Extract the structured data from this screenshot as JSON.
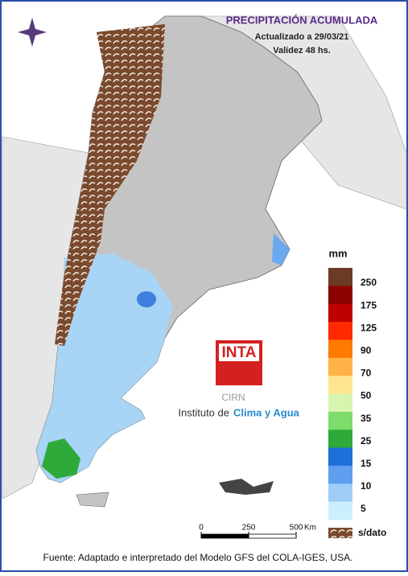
{
  "header": {
    "title": "PRECIPITACIÓN ACUMULADA",
    "updated": "Actualizado a 29/03/21",
    "validity": "Validez 48 hs."
  },
  "legend": {
    "unit": "mm",
    "colors": [
      "#6b3b26",
      "#8b0000",
      "#c00000",
      "#ff2a00",
      "#ff7a00",
      "#ffb347",
      "#ffe58f",
      "#d8f5b0",
      "#7ddc6a",
      "#2eaa3a",
      "#1f6fd8",
      "#5f9ff0",
      "#9fcdf8",
      "#cdeffd"
    ],
    "ticks": [
      250,
      175,
      125,
      90,
      70,
      50,
      35,
      25,
      15,
      10,
      5
    ],
    "nodata_label": "s/dato"
  },
  "logo": {
    "name": "INTA",
    "center": "CIRN",
    "institute_prefix": "Instituto de",
    "institute_name": "Clima y Agua"
  },
  "scale_bar": {
    "ticks": [
      0,
      250,
      500
    ],
    "unit": "Km"
  },
  "source": "Fuente: Adaptado e interpretado del Modelo GFS del COLA-IGES, USA."
}
